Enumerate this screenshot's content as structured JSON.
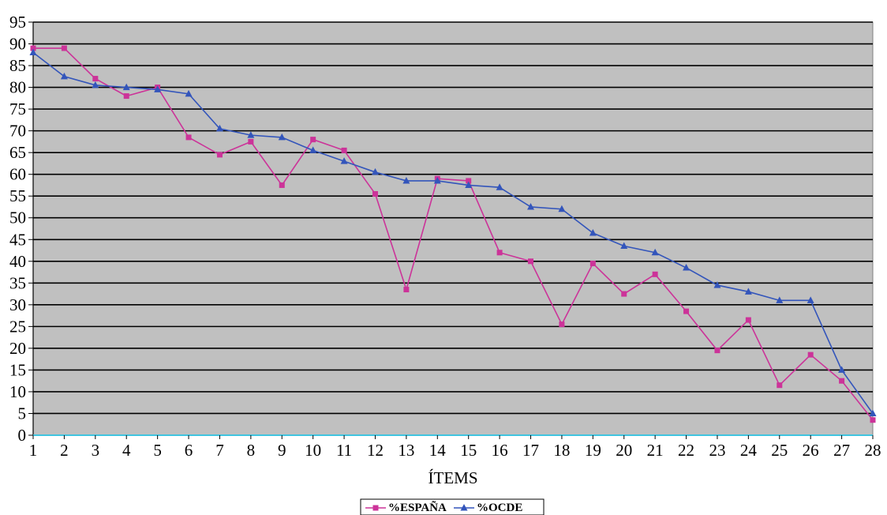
{
  "chart_data": {
    "type": "line",
    "xlabel": "ÍTEMS",
    "ylabel": "",
    "x": [
      1,
      2,
      3,
      4,
      5,
      6,
      7,
      8,
      9,
      10,
      11,
      12,
      13,
      14,
      15,
      16,
      17,
      18,
      19,
      20,
      21,
      22,
      23,
      24,
      25,
      26,
      27,
      28
    ],
    "x_tick_labels": [
      "1",
      "2",
      "3",
      "4",
      "5",
      "6",
      "7",
      "8",
      "9",
      "10",
      "11",
      "12",
      "13",
      "14",
      "15",
      "16",
      "17",
      "18",
      "19",
      "20",
      "21",
      "22",
      "23",
      "24",
      "25",
      "26",
      "27",
      "28"
    ],
    "ylim": [
      0,
      95
    ],
    "y_tick_labels": [
      "0",
      "5",
      "10",
      "15",
      "20",
      "25",
      "30",
      "35",
      "40",
      "45",
      "50",
      "55",
      "60",
      "65",
      "70",
      "75",
      "80",
      "85",
      "90",
      "95"
    ],
    "grid": true,
    "legend_position": "bottom",
    "colors": {
      "plot_background": "#c0c0c0",
      "gridline": "#000000",
      "x_axis_line": "#40c4e0"
    },
    "series": [
      {
        "name": "%ESPAÑA",
        "color": "#cc3399",
        "marker": "square",
        "values": [
          89,
          89,
          82,
          78,
          80,
          68.5,
          64.5,
          67.5,
          57.5,
          68,
          65.5,
          55.5,
          33.5,
          59,
          58.5,
          42,
          40,
          25.5,
          39.5,
          32.5,
          37,
          28.5,
          19.5,
          26.5,
          11.5,
          18.5,
          12.5,
          3.5
        ]
      },
      {
        "name": "%OCDE",
        "color": "#3355bb",
        "marker": "triangle",
        "values": [
          88,
          82.5,
          80.5,
          80,
          79.5,
          78.5,
          70.5,
          69,
          68.5,
          65.5,
          63,
          60.5,
          58.5,
          58.5,
          57.5,
          57,
          52.5,
          52,
          46.5,
          43.5,
          42,
          38.5,
          34.5,
          33,
          31,
          31,
          15,
          5
        ]
      }
    ]
  }
}
